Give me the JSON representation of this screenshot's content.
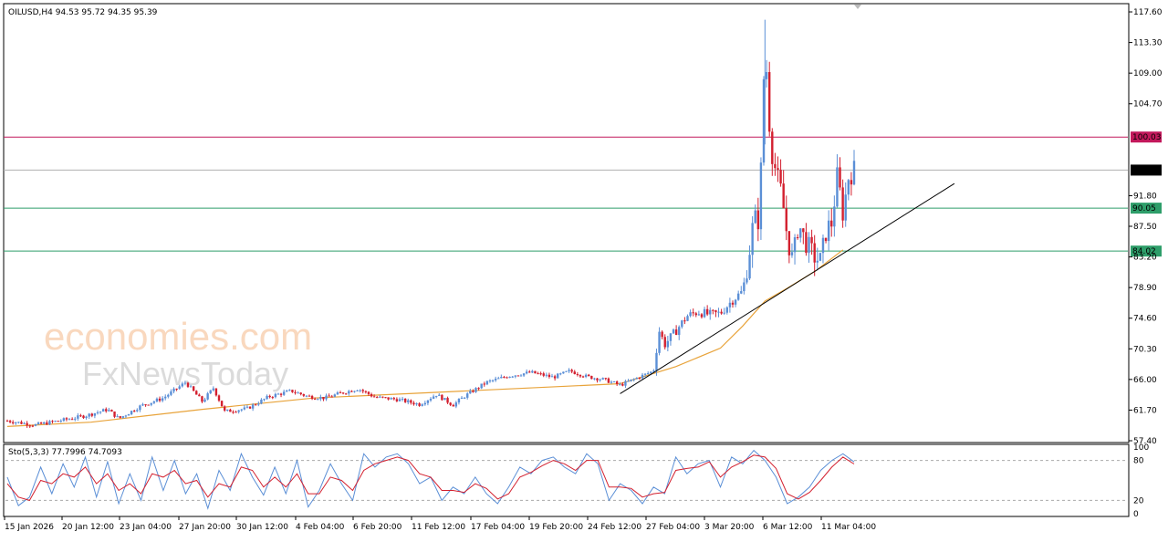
{
  "chart_data": {
    "type": "candlestick",
    "symbol_header": "OILUSD,H4  94.53 95.72 94.35 95.39",
    "symbol": "OILUSD",
    "timeframe": "H4",
    "ohlc_last": {
      "open": 94.53,
      "high": 95.72,
      "low": 94.35,
      "close": 95.39
    },
    "ylim": [
      57.4,
      118.5
    ],
    "y_ticks": [
      "117.60",
      "113.30",
      "109.00",
      "104.70",
      "100.03",
      "95.39",
      "91.80",
      "90.05",
      "87.50",
      "84.02",
      "83.20",
      "78.90",
      "74.60",
      "70.30",
      "66.00",
      "61.70",
      "57.40"
    ],
    "x_ticks": [
      "15 Jan 2026",
      "20 Jan 12:00",
      "23 Jan 04:00",
      "27 Jan 20:00",
      "30 Jan 12:00",
      "4 Feb 04:00",
      "6 Feb 20:00",
      "11 Feb 12:00",
      "17 Feb 04:00",
      "19 Feb 20:00",
      "24 Feb 12:00",
      "27 Feb 04:00",
      "3 Mar 20:00",
      "6 Mar 12:00",
      "11 Mar 04:00"
    ],
    "horizontal_levels": [
      {
        "value": 100.03,
        "label": "100.03",
        "color": "#c2185b"
      },
      {
        "value": 95.39,
        "label": "95.39",
        "color": "#b0b0b0"
      },
      {
        "value": 90.05,
        "label": "90.05",
        "color": "#2e9e6a"
      },
      {
        "value": 84.02,
        "label": "84.02",
        "color": "#2e9e6a"
      }
    ],
    "up_color": "#5b8fd6",
    "down_color": "#d3202f",
    "ma_color": "#e8a33a",
    "trendline_color": "#000000",
    "price_path": [
      [
        0,
        60.2
      ],
      [
        5,
        59.6
      ],
      [
        10,
        60.3
      ],
      [
        14,
        60.9
      ],
      [
        18,
        61.8
      ],
      [
        20,
        60.5
      ],
      [
        24,
        62.3
      ],
      [
        28,
        63.4
      ],
      [
        32,
        65.6
      ],
      [
        35,
        62.9
      ],
      [
        37,
        64.8
      ],
      [
        39,
        61.5
      ],
      [
        43,
        61.9
      ],
      [
        47,
        63.6
      ],
      [
        51,
        64.4
      ],
      [
        54,
        63.6
      ],
      [
        57,
        63.4
      ],
      [
        60,
        64.1
      ],
      [
        63,
        64.7
      ],
      [
        66,
        63.5
      ],
      [
        70,
        63.2
      ],
      [
        74,
        62.5
      ],
      [
        77,
        63.9
      ],
      [
        80,
        62.4
      ],
      [
        82,
        63.6
      ],
      [
        86,
        65.6
      ],
      [
        90,
        66.5
      ],
      [
        94,
        67.0
      ],
      [
        98,
        66.3
      ],
      [
        101,
        67.2
      ],
      [
        104,
        66.4
      ],
      [
        107,
        66.0
      ],
      [
        110,
        65.2
      ],
      [
        113,
        66.2
      ],
      [
        116,
        67.2
      ],
      [
        117,
        72.9
      ],
      [
        118,
        70.9
      ],
      [
        120,
        72.8
      ],
      [
        122,
        74.9
      ],
      [
        124,
        75.5
      ],
      [
        126,
        75.1
      ],
      [
        128,
        75.3
      ],
      [
        130,
        77.0
      ],
      [
        132,
        78.4
      ],
      [
        133,
        82.8
      ],
      [
        134,
        88.6
      ],
      [
        135,
        88.3
      ],
      [
        136,
        113.7
      ],
      [
        137,
        99.0
      ],
      [
        138,
        95.0
      ],
      [
        139,
        92.0
      ],
      [
        140,
        86.0
      ],
      [
        141,
        82.5
      ],
      [
        142,
        88.0
      ],
      [
        143,
        85.8
      ],
      [
        144,
        84.3
      ],
      [
        145,
        83.1
      ],
      [
        146,
        82.6
      ],
      [
        147,
        87.0
      ],
      [
        148,
        88.0
      ],
      [
        149,
        94.7
      ],
      [
        150,
        89.3
      ],
      [
        151,
        94.5
      ],
      [
        152,
        95.39
      ]
    ],
    "ma_path": [
      [
        0,
        59.4
      ],
      [
        15,
        60.0
      ],
      [
        35,
        61.8
      ],
      [
        55,
        63.4
      ],
      [
        80,
        64.3
      ],
      [
        110,
        65.4
      ],
      [
        120,
        67.8
      ],
      [
        128,
        70.4
      ],
      [
        132,
        73.5
      ],
      [
        136,
        77.0
      ],
      [
        140,
        78.8
      ],
      [
        145,
        81.2
      ],
      [
        150,
        84.2
      ]
    ],
    "trendline": {
      "x1": 110,
      "y1": 64.0,
      "x2": 170,
      "y2": 93.5
    },
    "stochastic": {
      "label": "Sto(5,3,3) 77.7996 74.7093",
      "k": 77.7996,
      "d": 74.7093,
      "params": "5,3,3",
      "ylim": [
        0,
        100
      ],
      "y_ticks": [
        "100",
        "80",
        "20",
        "0"
      ],
      "levels": [
        20,
        80
      ],
      "k_color": "#5b8fd6",
      "d_color": "#d3202f",
      "k_path": [
        [
          0,
          55
        ],
        [
          2,
          12
        ],
        [
          4,
          25
        ],
        [
          6,
          70
        ],
        [
          8,
          30
        ],
        [
          10,
          75
        ],
        [
          12,
          40
        ],
        [
          14,
          85
        ],
        [
          16,
          25
        ],
        [
          18,
          78
        ],
        [
          20,
          15
        ],
        [
          22,
          60
        ],
        [
          24,
          20
        ],
        [
          26,
          85
        ],
        [
          28,
          35
        ],
        [
          30,
          80
        ],
        [
          32,
          30
        ],
        [
          34,
          60
        ],
        [
          36,
          8
        ],
        [
          38,
          65
        ],
        [
          40,
          35
        ],
        [
          42,
          90
        ],
        [
          44,
          55
        ],
        [
          46,
          28
        ],
        [
          48,
          70
        ],
        [
          50,
          30
        ],
        [
          52,
          80
        ],
        [
          54,
          10
        ],
        [
          56,
          35
        ],
        [
          58,
          75
        ],
        [
          60,
          45
        ],
        [
          62,
          20
        ],
        [
          64,
          90
        ],
        [
          66,
          70
        ],
        [
          68,
          85
        ],
        [
          70,
          90
        ],
        [
          72,
          75
        ],
        [
          74,
          45
        ],
        [
          76,
          55
        ],
        [
          78,
          20
        ],
        [
          80,
          40
        ],
        [
          82,
          30
        ],
        [
          84,
          55
        ],
        [
          86,
          30
        ],
        [
          88,
          15
        ],
        [
          90,
          40
        ],
        [
          92,
          70
        ],
        [
          94,
          60
        ],
        [
          96,
          80
        ],
        [
          98,
          85
        ],
        [
          100,
          70
        ],
        [
          102,
          60
        ],
        [
          104,
          90
        ],
        [
          106,
          75
        ],
        [
          108,
          20
        ],
        [
          110,
          45
        ],
        [
          112,
          35
        ],
        [
          114,
          15
        ],
        [
          116,
          40
        ],
        [
          118,
          30
        ],
        [
          120,
          85
        ],
        [
          122,
          60
        ],
        [
          124,
          75
        ],
        [
          126,
          80
        ],
        [
          128,
          40
        ],
        [
          130,
          85
        ],
        [
          132,
          75
        ],
        [
          134,
          95
        ],
        [
          136,
          80
        ],
        [
          138,
          55
        ],
        [
          140,
          15
        ],
        [
          142,
          25
        ],
        [
          144,
          40
        ],
        [
          146,
          65
        ],
        [
          148,
          80
        ],
        [
          150,
          90
        ],
        [
          152,
          77.8
        ]
      ],
      "d_path": [
        [
          0,
          45
        ],
        [
          2,
          25
        ],
        [
          4,
          20
        ],
        [
          6,
          50
        ],
        [
          8,
          45
        ],
        [
          10,
          60
        ],
        [
          12,
          55
        ],
        [
          14,
          70
        ],
        [
          16,
          45
        ],
        [
          18,
          60
        ],
        [
          20,
          35
        ],
        [
          22,
          45
        ],
        [
          24,
          30
        ],
        [
          26,
          60
        ],
        [
          28,
          55
        ],
        [
          30,
          65
        ],
        [
          32,
          45
        ],
        [
          34,
          50
        ],
        [
          36,
          25
        ],
        [
          38,
          45
        ],
        [
          40,
          40
        ],
        [
          42,
          70
        ],
        [
          44,
          65
        ],
        [
          46,
          40
        ],
        [
          48,
          55
        ],
        [
          50,
          40
        ],
        [
          52,
          60
        ],
        [
          54,
          30
        ],
        [
          56,
          30
        ],
        [
          58,
          55
        ],
        [
          60,
          50
        ],
        [
          62,
          35
        ],
        [
          64,
          65
        ],
        [
          66,
          75
        ],
        [
          68,
          80
        ],
        [
          70,
          85
        ],
        [
          72,
          80
        ],
        [
          74,
          60
        ],
        [
          76,
          55
        ],
        [
          78,
          35
        ],
        [
          80,
          35
        ],
        [
          82,
          32
        ],
        [
          84,
          45
        ],
        [
          86,
          38
        ],
        [
          88,
          22
        ],
        [
          90,
          30
        ],
        [
          92,
          55
        ],
        [
          94,
          62
        ],
        [
          96,
          72
        ],
        [
          98,
          80
        ],
        [
          100,
          75
        ],
        [
          102,
          65
        ],
        [
          104,
          80
        ],
        [
          106,
          80
        ],
        [
          108,
          40
        ],
        [
          110,
          40
        ],
        [
          112,
          38
        ],
        [
          114,
          25
        ],
        [
          116,
          30
        ],
        [
          118,
          32
        ],
        [
          120,
          65
        ],
        [
          122,
          68
        ],
        [
          124,
          70
        ],
        [
          126,
          78
        ],
        [
          128,
          55
        ],
        [
          130,
          70
        ],
        [
          132,
          78
        ],
        [
          134,
          88
        ],
        [
          136,
          85
        ],
        [
          138,
          68
        ],
        [
          140,
          30
        ],
        [
          142,
          22
        ],
        [
          144,
          32
        ],
        [
          146,
          50
        ],
        [
          148,
          70
        ],
        [
          150,
          85
        ],
        [
          152,
          74.7
        ]
      ]
    }
  }
}
